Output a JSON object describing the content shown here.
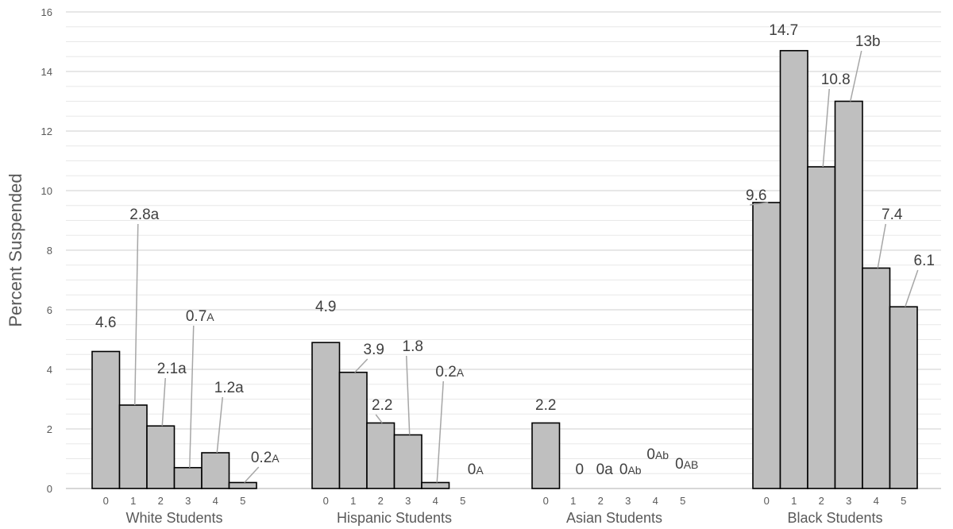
{
  "chart_data": {
    "type": "bar",
    "ylabel": "Percent Suspended",
    "xlabel": "",
    "ylim": [
      0,
      16
    ],
    "yticks": [
      0,
      2,
      4,
      6,
      8,
      10,
      12,
      14,
      16
    ],
    "grid": true,
    "groups": [
      {
        "name": "White Students",
        "categories": [
          "0",
          "1",
          "2",
          "3",
          "4",
          "5"
        ],
        "values": [
          4.6,
          2.8,
          2.1,
          0.7,
          1.2,
          0.2
        ],
        "labels": [
          {
            "main": "4.6",
            "sub": ""
          },
          {
            "main": "2.8a",
            "sub": ""
          },
          {
            "main": "2.1a",
            "sub": ""
          },
          {
            "main": "0.7",
            "sub": "A"
          },
          {
            "main": "1.2a",
            "sub": ""
          },
          {
            "main": "0.2",
            "sub": "A"
          }
        ]
      },
      {
        "name": "Hispanic Students",
        "categories": [
          "0",
          "1",
          "2",
          "3",
          "4",
          "5"
        ],
        "values": [
          4.9,
          3.9,
          2.2,
          1.8,
          0.2,
          0
        ],
        "labels": [
          {
            "main": "4.9",
            "sub": ""
          },
          {
            "main": "3.9",
            "sub": ""
          },
          {
            "main": "2.2",
            "sub": ""
          },
          {
            "main": "1.8",
            "sub": ""
          },
          {
            "main": "0.2",
            "sub": "A"
          },
          {
            "main": "0",
            "sub": "A"
          }
        ]
      },
      {
        "name": "Asian Students",
        "categories": [
          "0",
          "1",
          "2",
          "3",
          "4",
          "5"
        ],
        "values": [
          2.2,
          0,
          0,
          0,
          0,
          0
        ],
        "labels": [
          {
            "main": "2.2",
            "sub": ""
          },
          {
            "main": "0",
            "sub": ""
          },
          {
            "main": "0a",
            "sub": ""
          },
          {
            "main": "0",
            "sub": "Ab"
          },
          {
            "main": "0",
            "sub": "Ab"
          },
          {
            "main": "0",
            "sub": "AB"
          }
        ]
      },
      {
        "name": "Black Students",
        "categories": [
          "0",
          "1",
          "2",
          "3",
          "4",
          "5"
        ],
        "values": [
          9.6,
          14.7,
          10.8,
          13,
          7.4,
          6.1
        ],
        "labels": [
          {
            "main": "9.6",
            "sub": ""
          },
          {
            "main": "14.7",
            "sub": ""
          },
          {
            "main": "10.8",
            "sub": ""
          },
          {
            "main": "13b",
            "sub": ""
          },
          {
            "main": "7.4",
            "sub": ""
          },
          {
            "main": "6.1",
            "sub": ""
          }
        ]
      }
    ],
    "colors": {
      "bar_fill": "#bfbfbf",
      "bar_stroke": "#000000",
      "grid": "#d9d9d9",
      "leader": "#a6a6a6",
      "text": "#595959"
    }
  }
}
